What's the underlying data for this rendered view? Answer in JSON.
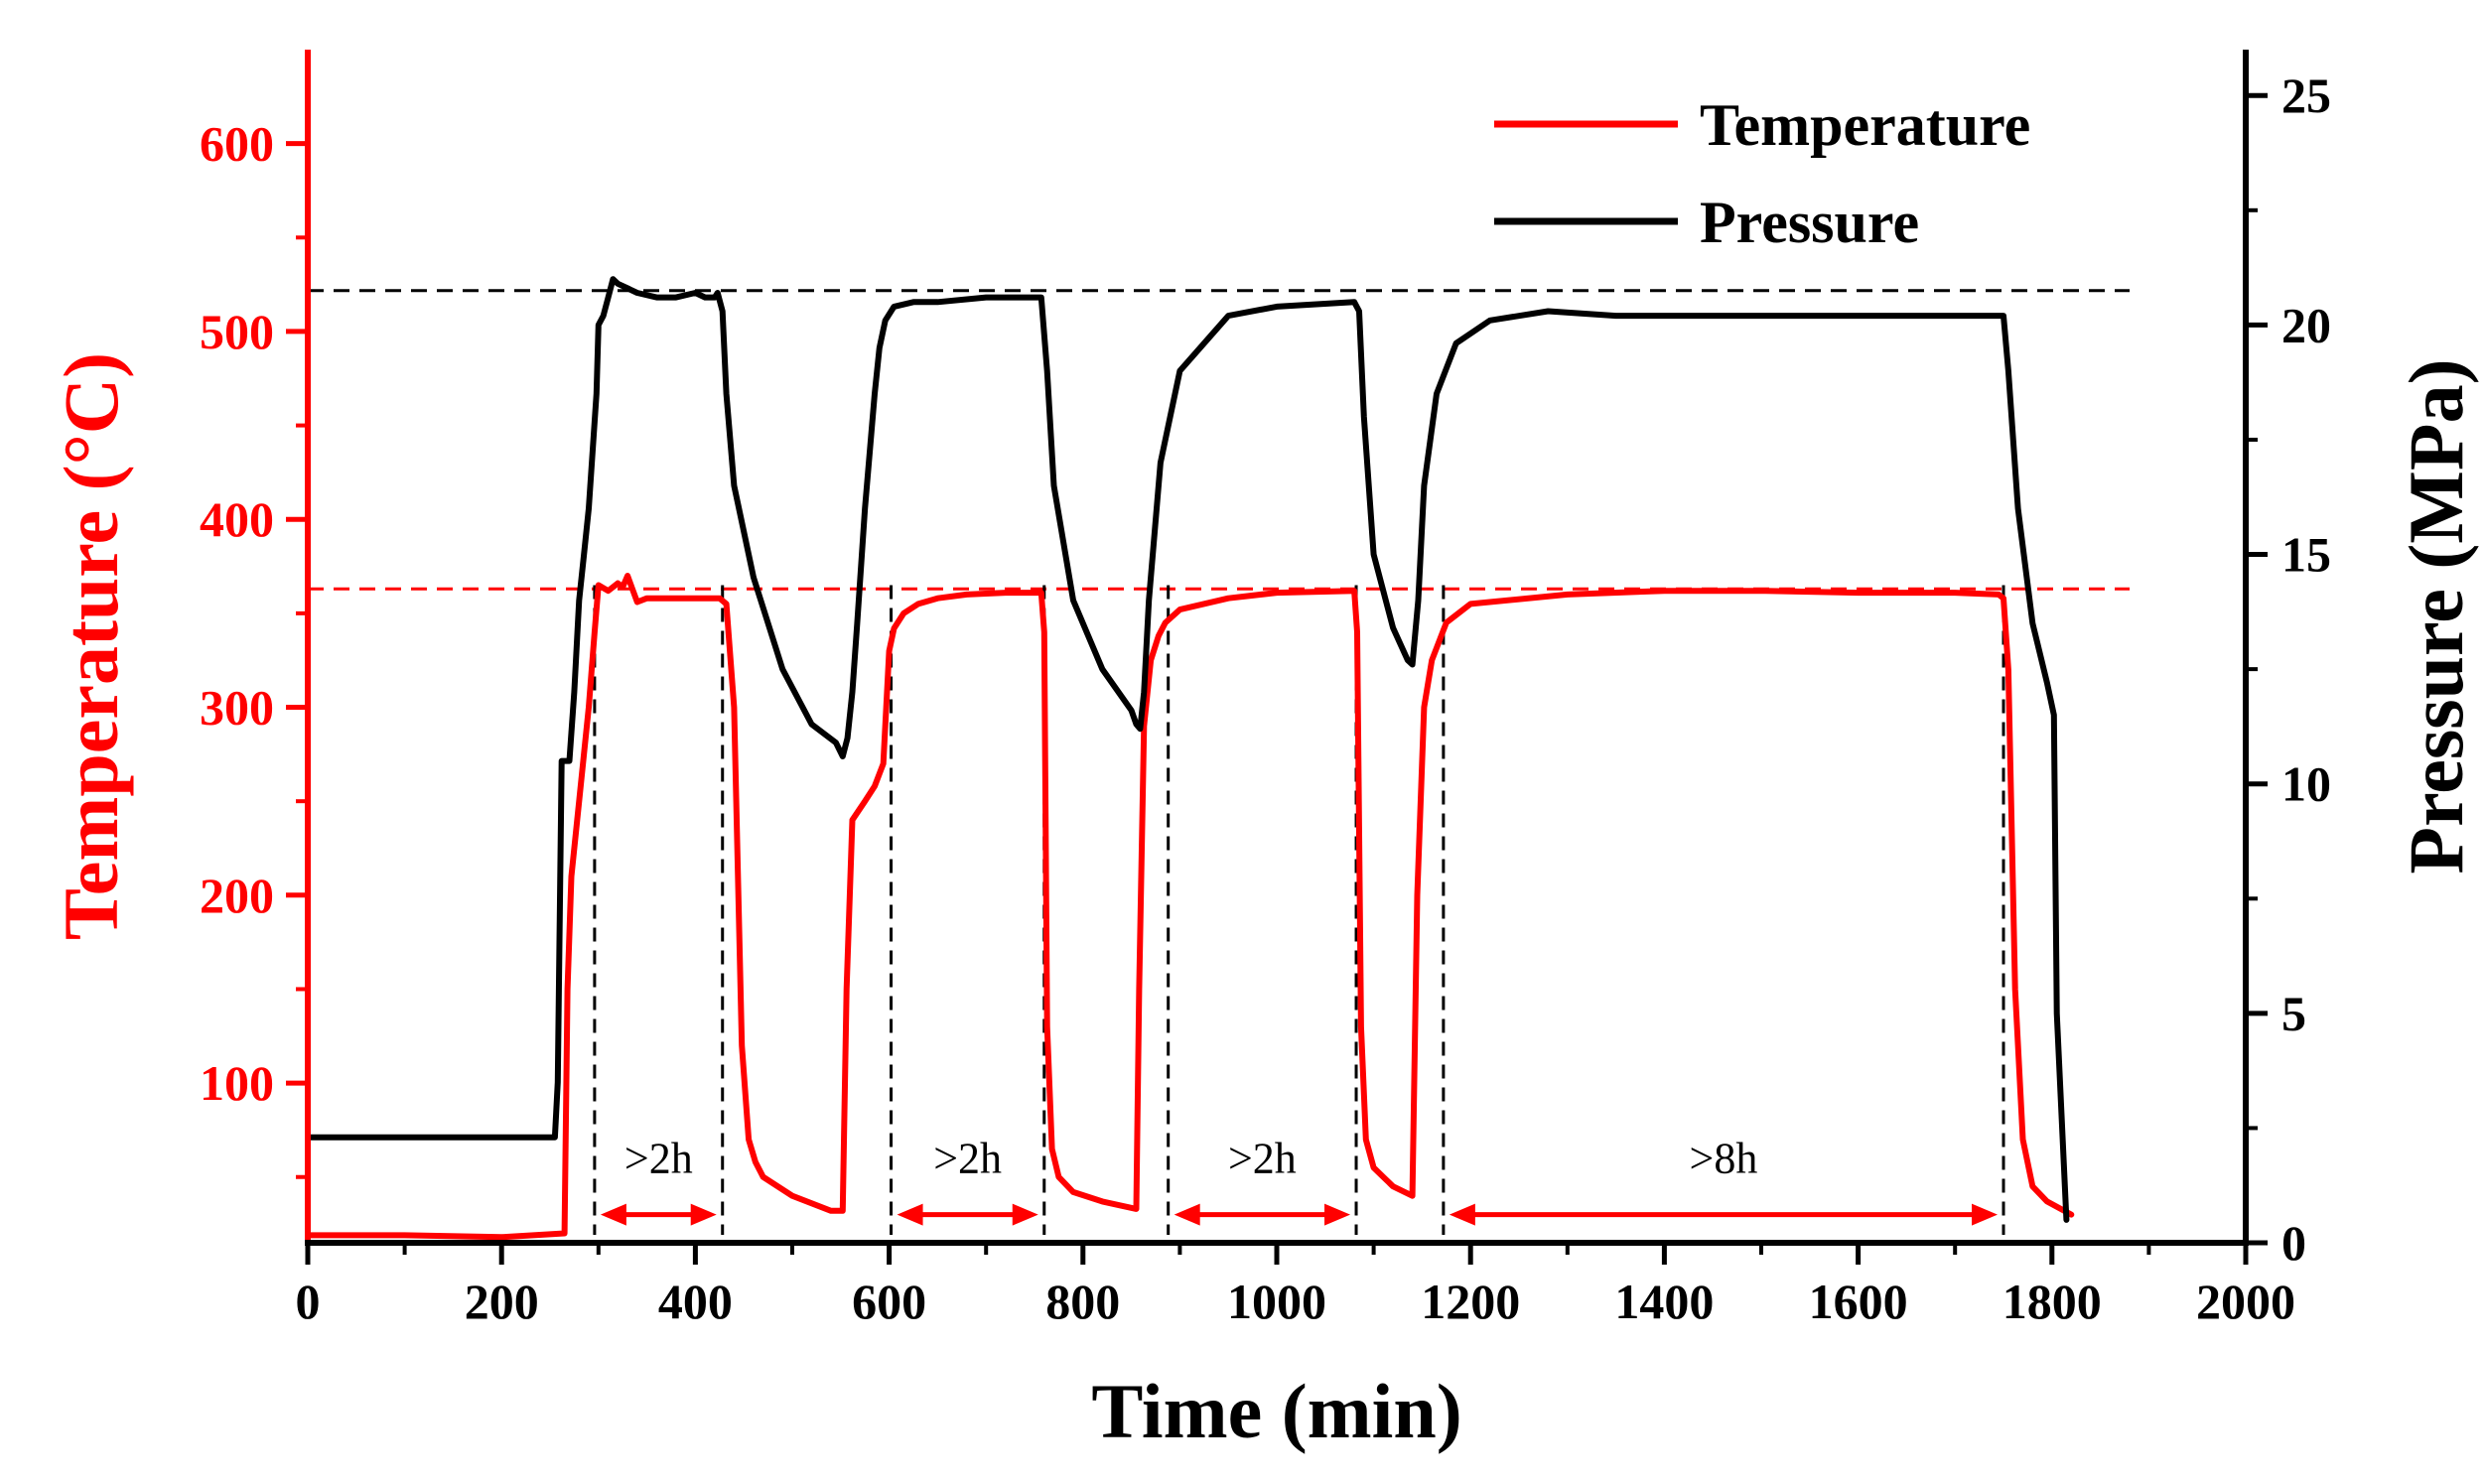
{
  "chart_data": {
    "type": "line",
    "xlabel": "Time (min)",
    "ylabel_left": "Temperature (°C)",
    "ylabel_right": "Pressure (MPa)",
    "xlim": [
      0,
      2000
    ],
    "ylim_left": [
      15,
      650
    ],
    "ylim_right": [
      0,
      26
    ],
    "x_ticks": [
      "0",
      "200",
      "400",
      "600",
      "800",
      "1000",
      "1200",
      "1400",
      "1600",
      "1800",
      "2000"
    ],
    "x_tick_values": [
      0,
      200,
      400,
      600,
      800,
      1000,
      1200,
      1400,
      1600,
      1800,
      2000
    ],
    "y_left_ticks": [
      "100",
      "200",
      "300",
      "400",
      "500",
      "600"
    ],
    "y_left_tick_values": [
      100,
      200,
      300,
      400,
      500,
      600
    ],
    "y_right_ticks": [
      "0",
      "5",
      "10",
      "15",
      "20",
      "25"
    ],
    "y_right_tick_values": [
      0,
      5,
      10,
      15,
      20,
      25
    ],
    "colors": {
      "temperature": "#ff0000",
      "pressure": "#000000",
      "axis_left": "#ff0000",
      "axis_right": "#000000"
    },
    "legend": {
      "position": "top-right",
      "entries": [
        {
          "label": "Temperature",
          "color": "#ff0000"
        },
        {
          "label": "Pressure",
          "color": "#000000"
        }
      ]
    },
    "series": [
      {
        "name": "Temperature",
        "axis": "left",
        "color": "#ff0000",
        "x": [
          0,
          100,
          200,
          265,
          268,
          272,
          280,
          290,
          296,
          300,
          310,
          320,
          325,
          330,
          340,
          350,
          360,
          400,
          425,
          432,
          440,
          448,
          455,
          462,
          470,
          500,
          540,
          552,
          556,
          562,
          575,
          585,
          594,
          600,
          605,
          615,
          630,
          650,
          680,
          720,
          757,
          760,
          763,
          768,
          775,
          790,
          820,
          855,
          858,
          863,
          870,
          878,
          885,
          900,
          950,
          1000,
          1080,
          1083,
          1087,
          1092,
          1100,
          1120,
          1140,
          1145,
          1152,
          1160,
          1175,
          1200,
          1300,
          1400,
          1500,
          1600,
          1700,
          1745,
          1750,
          1755,
          1762,
          1770,
          1780,
          1795,
          1820
        ],
        "y": [
          19,
          19,
          18,
          20,
          150,
          210,
          250,
          300,
          340,
          365,
          362,
          366,
          364,
          370,
          356,
          358,
          358,
          358,
          358,
          355,
          300,
          120,
          70,
          58,
          50,
          40,
          32,
          32,
          150,
          240,
          250,
          258,
          270,
          330,
          342,
          350,
          355,
          358,
          360,
          361,
          361,
          340,
          130,
          65,
          50,
          42,
          37,
          33,
          150,
          290,
          325,
          338,
          345,
          352,
          358,
          361,
          362,
          340,
          130,
          70,
          55,
          45,
          40,
          200,
          300,
          325,
          345,
          355,
          360,
          362,
          362,
          361,
          361,
          360,
          358,
          320,
          150,
          70,
          45,
          37,
          30
        ]
      },
      {
        "name": "Pressure",
        "axis": "right",
        "color": "#000000",
        "x": [
          0,
          100,
          200,
          255,
          258,
          262,
          267,
          270,
          275,
          280,
          285,
          290,
          298,
          300,
          305,
          310,
          315,
          320,
          330,
          340,
          360,
          380,
          400,
          410,
          420,
          423,
          428,
          432,
          440,
          460,
          490,
          520,
          545,
          552,
          557,
          562,
          567,
          575,
          585,
          590,
          596,
          605,
          625,
          650,
          700,
          757,
          763,
          770,
          790,
          820,
          850,
          855,
          859,
          863,
          868,
          880,
          900,
          950,
          1000,
          1080,
          1085,
          1090,
          1100,
          1120,
          1135,
          1140,
          1146,
          1152,
          1165,
          1185,
          1220,
          1280,
          1350,
          1500,
          1600,
          1700,
          1750,
          1755,
          1765,
          1780,
          1795,
          1802,
          1805,
          1815
        ],
        "y": [
          2.3,
          2.3,
          2.3,
          2.3,
          3.5,
          10.5,
          10.5,
          10.5,
          12.0,
          14.0,
          15.0,
          16.0,
          18.5,
          20.0,
          20.2,
          20.6,
          21.0,
          20.9,
          20.8,
          20.7,
          20.6,
          20.6,
          20.7,
          20.6,
          20.6,
          20.7,
          20.3,
          18.5,
          16.5,
          14.5,
          12.5,
          11.3,
          10.9,
          10.6,
          11.0,
          12.0,
          13.5,
          16.0,
          18.5,
          19.5,
          20.1,
          20.4,
          20.5,
          20.5,
          20.6,
          20.6,
          19.0,
          16.5,
          14.0,
          12.5,
          11.6,
          11.3,
          11.2,
          12.0,
          14.0,
          17.0,
          19.0,
          20.2,
          20.4,
          20.5,
          20.3,
          18.0,
          15.0,
          13.4,
          12.7,
          12.6,
          14.0,
          16.5,
          18.5,
          19.6,
          20.1,
          20.3,
          20.2,
          20.2,
          20.2,
          20.2,
          20.2,
          19.0,
          16.0,
          13.5,
          12.2,
          11.5,
          5.0,
          0.5
        ]
      }
    ],
    "reference_lines": [
      {
        "axis": "left",
        "orientation": "horizontal",
        "value": 363,
        "color": "#ff0000",
        "style": "dashed"
      },
      {
        "axis": "right",
        "orientation": "horizontal",
        "value": 20.75,
        "color": "#000000",
        "style": "dashed"
      }
    ],
    "hold_periods": [
      {
        "label": ">2h",
        "start": 296,
        "end": 428
      },
      {
        "label": ">2h",
        "start": 602,
        "end": 760
      },
      {
        "label": ">2h",
        "start": 888,
        "end": 1082
      },
      {
        "label": ">8h",
        "start": 1172,
        "end": 1750
      }
    ]
  }
}
